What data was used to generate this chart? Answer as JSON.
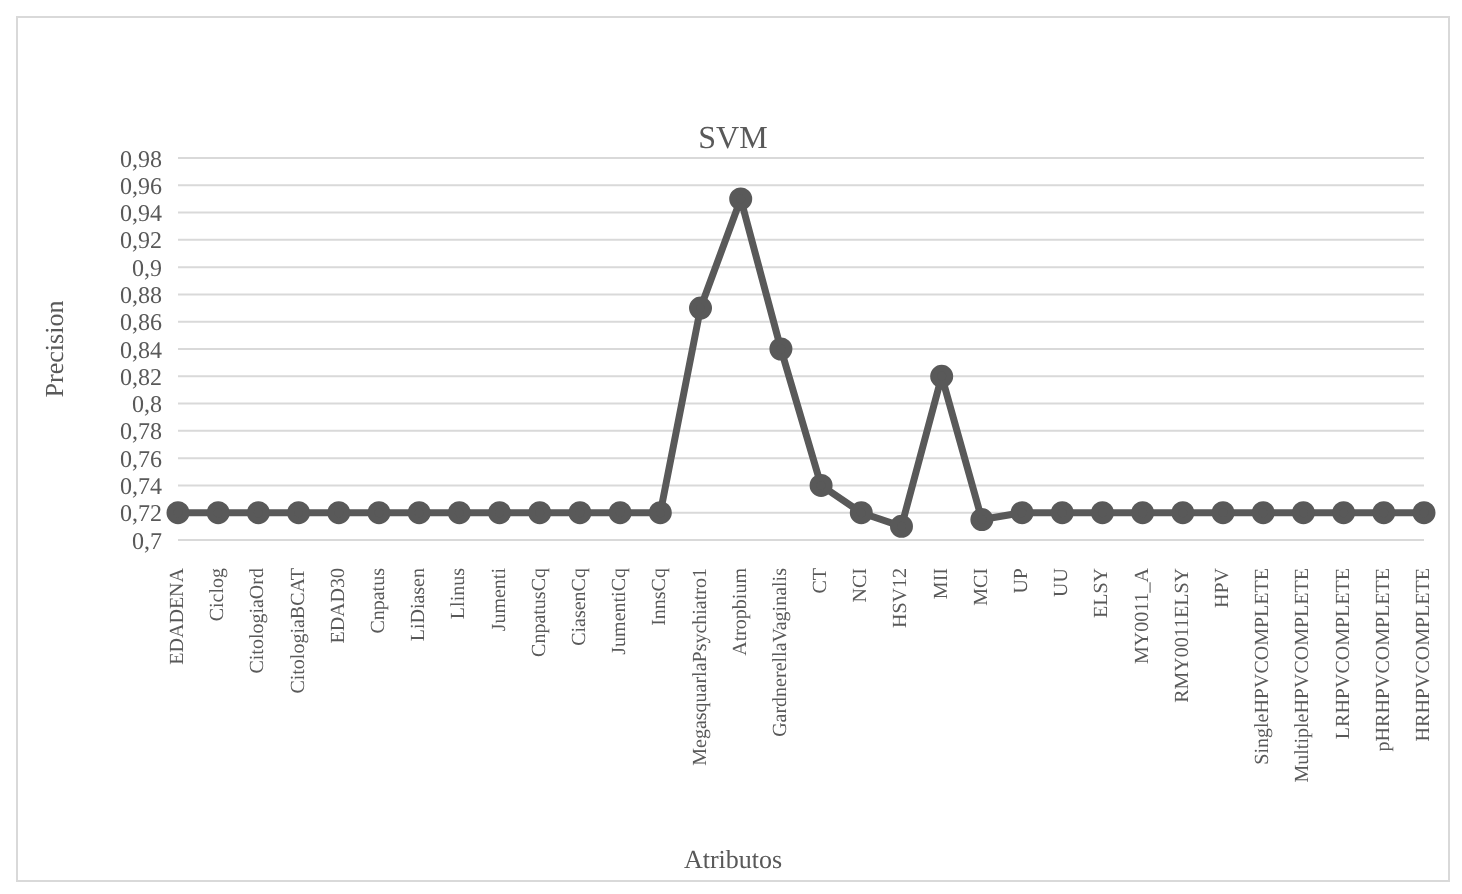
{
  "chart_data": {
    "type": "line",
    "title": "SVM",
    "xlabel": "Atributos",
    "ylabel": "Precision",
    "categories": [
      "EDADENA",
      "Ciclog",
      "CitologiaOrd",
      "CitologiaBCAT",
      "EDAD30",
      "Cnpatus",
      "LiDiasen",
      "Llinus",
      "Jumenti",
      "CnpatusCq",
      "CiasenCq",
      "JumentiCq",
      "InnsCq",
      "MegasquarlaPsychiatro1",
      "Atropbium",
      "GardnerellaVaginalis",
      "CT",
      "NCI",
      "HSV12",
      "MII",
      "MCI",
      "UP",
      "UU",
      "ELSY",
      "MY0011_A",
      "RMY0011ELSY",
      "HPV",
      "SingleHPVCOMPLETE",
      "MultipleHPVCOMPLETE",
      "LRHPVCOMPLETE",
      "pHRHPVCOMPLETE",
      "HRHPVCOMPLETE"
    ],
    "series": [
      {
        "color": "#595959",
        "values": [
          0.72,
          0.72,
          0.72,
          0.72,
          0.72,
          0.72,
          0.72,
          0.72,
          0.72,
          0.72,
          0.72,
          0.72,
          0.72,
          0.87,
          0.95,
          0.84,
          0.74,
          0.72,
          0.71,
          0.82,
          0.715,
          0.72,
          0.72,
          0.72,
          0.72,
          0.72,
          0.72,
          0.72,
          0.72,
          0.72,
          0.72,
          0.72
        ]
      }
    ],
    "ylim": [
      0.7,
      0.98
    ],
    "yticks": [
      {
        "value": 0.7,
        "label": "0,7"
      },
      {
        "value": 0.72,
        "label": "0,72"
      },
      {
        "value": 0.74,
        "label": "0,74"
      },
      {
        "value": 0.76,
        "label": "0,76"
      },
      {
        "value": 0.78,
        "label": "0,78"
      },
      {
        "value": 0.8,
        "label": "0,8"
      },
      {
        "value": 0.82,
        "label": "0,82"
      },
      {
        "value": 0.84,
        "label": "0,84"
      },
      {
        "value": 0.86,
        "label": "0,86"
      },
      {
        "value": 0.88,
        "label": "0,88"
      },
      {
        "value": 0.9,
        "label": "0,9"
      },
      {
        "value": 0.92,
        "label": "0,92"
      },
      {
        "value": 0.94,
        "label": "0,94"
      },
      {
        "value": 0.96,
        "label": "0,96"
      },
      {
        "value": 0.98,
        "label": "0,98"
      }
    ],
    "grid": "y",
    "marker": "circle",
    "line_style": "solid",
    "legend": false
  }
}
